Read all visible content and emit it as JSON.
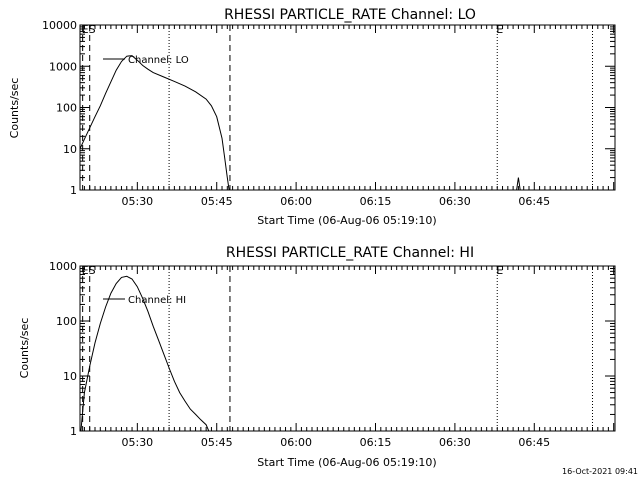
{
  "footer": {
    "timestamp": "16-Oct-2021 09:41"
  },
  "chart_data": [
    {
      "type": "line",
      "title": "RHESSI PARTICLE_RATE Channel: LO",
      "xlabel": "Start Time (06-Aug-06 05:19:10)",
      "ylabel": "Counts/sec",
      "y_scale": "log",
      "ylim": [
        1,
        10000
      ],
      "y_ticks": [
        1,
        10,
        100,
        1000,
        10000
      ],
      "y_tick_labels": [
        "1",
        "10",
        "100",
        "1000",
        "10000"
      ],
      "x_tick_labels": [
        "05:30",
        "05:45",
        "06:00",
        "06:15",
        "06:30",
        "06:45"
      ],
      "legend": {
        "label": "Channel: LO",
        "placement": "top-left"
      },
      "markers": [
        {
          "label": "ES",
          "time": "05:19:40",
          "style": "dashed"
        },
        {
          "time": "05:21:00",
          "style": "dashed"
        },
        {
          "time": "05:36:00",
          "style": "dotted"
        },
        {
          "time": "05:47:30",
          "style": "dashed"
        },
        {
          "label": "E",
          "time": "06:38:00",
          "style": "dotted"
        },
        {
          "time": "06:56:00",
          "style": "dotted"
        }
      ],
      "series": [
        {
          "x": [
            "05:19:10",
            "05:20:00",
            "05:21:00",
            "05:22:00",
            "05:23:00",
            "05:24:00",
            "05:25:00",
            "05:26:00",
            "05:27:00",
            "05:28:00",
            "05:29:00",
            "05:30:00",
            "05:31:00",
            "05:32:00",
            "05:33:00",
            "05:35:00",
            "05:37:00",
            "05:39:00",
            "05:41:00",
            "05:43:00",
            "05:44:00",
            "05:45:00",
            "05:46:00",
            "05:46:30",
            "05:47:00",
            "05:47:20"
          ],
          "values": [
            10,
            17,
            32,
            60,
            110,
            220,
            420,
            800,
            1300,
            1750,
            1800,
            1400,
            1050,
            850,
            700,
            550,
            430,
            330,
            240,
            160,
            110,
            60,
            18,
            6,
            2,
            1
          ]
        }
      ],
      "extra_segments": [
        {
          "x": [
            "06:41:40",
            "06:42:00",
            "06:42:20"
          ],
          "values": [
            1,
            2,
            1
          ]
        }
      ]
    },
    {
      "type": "line",
      "title": "RHESSI PARTICLE_RATE Channel: HI",
      "xlabel": "Start Time (06-Aug-06 05:19:10)",
      "ylabel": "Counts/sec",
      "y_scale": "log",
      "ylim": [
        1,
        1000
      ],
      "y_ticks": [
        1,
        10,
        100,
        1000
      ],
      "y_tick_labels": [
        "1",
        "10",
        "100",
        "1000"
      ],
      "x_tick_labels": [
        "05:30",
        "05:45",
        "06:00",
        "06:15",
        "06:30",
        "06:45"
      ],
      "legend": {
        "label": "Channel: HI",
        "placement": "top-left"
      },
      "markers": [
        {
          "label": "ES",
          "time": "05:19:40",
          "style": "dashed"
        },
        {
          "time": "05:21:00",
          "style": "dashed"
        },
        {
          "time": "05:36:00",
          "style": "dotted"
        },
        {
          "time": "05:47:30",
          "style": "dashed"
        },
        {
          "label": "E",
          "time": "06:38:00",
          "style": "dotted"
        },
        {
          "time": "06:56:00",
          "style": "dotted"
        }
      ],
      "series": [
        {
          "x": [
            "05:19:20",
            "05:20:00",
            "05:21:00",
            "05:22:00",
            "05:23:00",
            "05:24:00",
            "05:25:00",
            "05:26:00",
            "05:27:00",
            "05:28:00",
            "05:29:00",
            "05:30:00",
            "05:31:00",
            "05:32:00",
            "05:33:00",
            "05:34:00",
            "05:35:00",
            "05:36:00",
            "05:37:00",
            "05:38:00",
            "05:39:00",
            "05:40:00",
            "05:41:00",
            "05:42:00",
            "05:43:00",
            "05:43:30"
          ],
          "values": [
            1,
            5,
            15,
            40,
            90,
            180,
            320,
            480,
            620,
            650,
            580,
            420,
            260,
            150,
            80,
            45,
            25,
            14,
            8,
            5,
            3.5,
            2.5,
            2,
            1.6,
            1.3,
            1
          ]
        }
      ]
    }
  ]
}
